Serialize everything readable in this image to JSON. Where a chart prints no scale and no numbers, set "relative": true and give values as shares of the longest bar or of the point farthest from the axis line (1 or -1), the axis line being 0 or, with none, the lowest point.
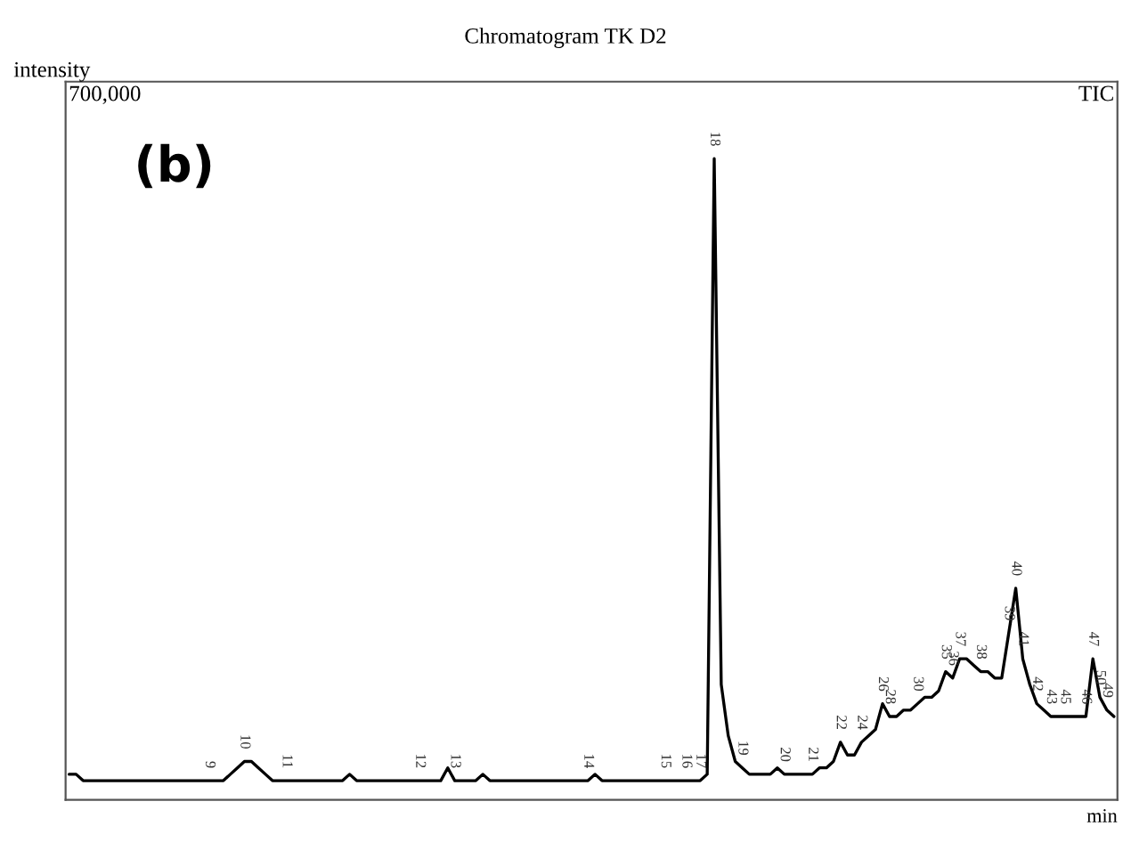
{
  "chart_data": {
    "type": "line",
    "title": "Chromatogram TK D2",
    "ylabel": "intensity",
    "xlabel": "min",
    "relative": true,
    "color": "#000000",
    "marker": "none",
    "line_style": "solid",
    "annotations": [
      "700,000",
      "TIC",
      "(b)"
    ],
    "categories": [
      null,
      null,
      null,
      null,
      null,
      null,
      null,
      null,
      null,
      null,
      null,
      null,
      null,
      null,
      null,
      null,
      null,
      null,
      null,
      null,
      "9",
      null,
      null,
      null,
      null,
      "10",
      null,
      null,
      null,
      null,
      null,
      "11",
      null,
      null,
      null,
      null,
      null,
      null,
      null,
      null,
      null,
      null,
      null,
      null,
      null,
      null,
      null,
      null,
      null,
      null,
      "12",
      null,
      null,
      null,
      null,
      "13",
      null,
      null,
      null,
      null,
      null,
      null,
      null,
      null,
      null,
      null,
      null,
      null,
      null,
      null,
      null,
      null,
      null,
      null,
      "14",
      null,
      null,
      null,
      null,
      null,
      null,
      null,
      null,
      null,
      null,
      "15",
      null,
      null,
      "16",
      null,
      "17",
      null,
      "18",
      null,
      null,
      null,
      "19",
      null,
      null,
      null,
      null,
      null,
      "20",
      null,
      null,
      null,
      "21",
      null,
      null,
      null,
      "22",
      null,
      null,
      "24",
      null,
      null,
      "26",
      "28",
      null,
      null,
      null,
      "30",
      null,
      null,
      null,
      "35",
      "36",
      "37",
      null,
      null,
      "38",
      null,
      null,
      null,
      "39",
      "40",
      "41",
      null,
      "42",
      null,
      "43",
      null,
      "45",
      null,
      null,
      "46",
      "47",
      "50",
      "49",
      null
    ],
    "values": [
      0.04,
      0.04,
      0.03,
      0.03,
      0.03,
      0.03,
      0.03,
      0.03,
      0.03,
      0.03,
      0.03,
      0.03,
      0.03,
      0.03,
      0.03,
      0.03,
      0.03,
      0.03,
      0.03,
      0.03,
      0.03,
      0.03,
      0.03,
      0.04,
      0.05,
      0.06,
      0.06,
      0.05,
      0.04,
      0.03,
      0.03,
      0.03,
      0.03,
      0.03,
      0.03,
      0.03,
      0.03,
      0.03,
      0.03,
      0.03,
      0.04,
      0.03,
      0.03,
      0.03,
      0.03,
      0.03,
      0.03,
      0.03,
      0.03,
      0.03,
      0.03,
      0.03,
      0.03,
      0.03,
      0.05,
      0.03,
      0.03,
      0.03,
      0.03,
      0.04,
      0.03,
      0.03,
      0.03,
      0.03,
      0.03,
      0.03,
      0.03,
      0.03,
      0.03,
      0.03,
      0.03,
      0.03,
      0.03,
      0.03,
      0.03,
      0.04,
      0.03,
      0.03,
      0.03,
      0.03,
      0.03,
      0.03,
      0.03,
      0.03,
      0.03,
      0.03,
      0.03,
      0.03,
      0.03,
      0.03,
      0.03,
      0.04,
      1.0,
      0.18,
      0.1,
      0.06,
      0.05,
      0.04,
      0.04,
      0.04,
      0.04,
      0.05,
      0.04,
      0.04,
      0.04,
      0.04,
      0.04,
      0.05,
      0.05,
      0.06,
      0.09,
      0.07,
      0.07,
      0.09,
      0.1,
      0.11,
      0.15,
      0.13,
      0.13,
      0.14,
      0.14,
      0.15,
      0.16,
      0.16,
      0.17,
      0.2,
      0.19,
      0.22,
      0.22,
      0.21,
      0.2,
      0.2,
      0.19,
      0.19,
      0.26,
      0.33,
      0.22,
      0.18,
      0.15,
      0.14,
      0.13,
      0.13,
      0.13,
      0.13,
      0.13,
      0.13,
      0.22,
      0.16,
      0.14,
      0.13
    ]
  }
}
